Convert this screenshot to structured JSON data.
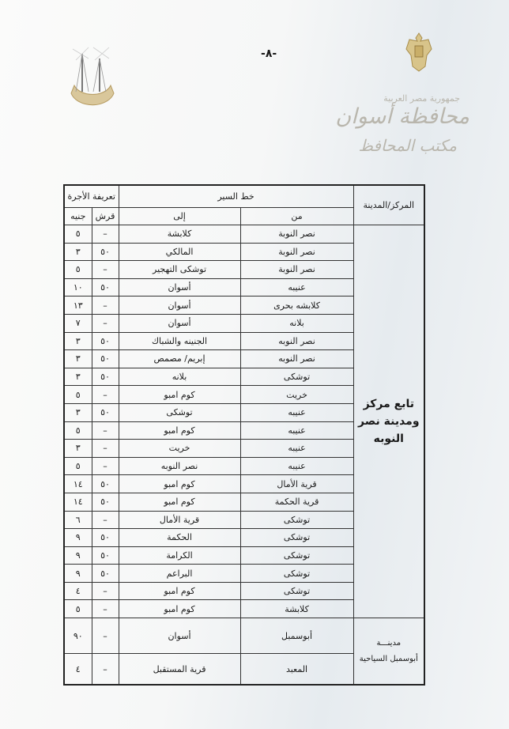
{
  "page_number": "-٨-",
  "letterhead": {
    "country": "جمهورية مصر العربية",
    "governorate": "محافظة أسوان",
    "office": "مكتب المحافظ",
    "emblem_icon": "egypt-eagle-emblem",
    "logo_icon": "aswan-governorate-logo"
  },
  "table": {
    "headers": {
      "district": "المركز/المدينة",
      "route": "خط السير",
      "from": "من",
      "to": "إلى",
      "fare": "تعريفة الأجرة",
      "piasters": "قرش",
      "pounds": "جنيه"
    },
    "groups": [
      {
        "district": "تابع مركز ومدينة نصر النوبه",
        "rows": [
          {
            "from": "نصر النوبة",
            "to": "كلابشة",
            "piasters": "–",
            "pounds": "٥"
          },
          {
            "from": "نصر النوبة",
            "to": "المالكي",
            "piasters": "٥٠",
            "pounds": "٣"
          },
          {
            "from": "نصر النوبة",
            "to": "توشكى التهجير",
            "piasters": "–",
            "pounds": "٥"
          },
          {
            "from": "عنيبه",
            "to": "أسوان",
            "piasters": "٥٠",
            "pounds": "١٠"
          },
          {
            "from": "كلابشه بحرى",
            "to": "أسوان",
            "piasters": "–",
            "pounds": "١٣"
          },
          {
            "from": "بلانه",
            "to": "أسوان",
            "piasters": "–",
            "pounds": "٧"
          },
          {
            "from": "نصر النوبه",
            "to": "الجنينه والشباك",
            "piasters": "٥٠",
            "pounds": "٣"
          },
          {
            "from": "نصر النوبه",
            "to": "إبريم/ مصمص",
            "piasters": "٥٠",
            "pounds": "٣"
          },
          {
            "from": "توشكى",
            "to": "بلانه",
            "piasters": "٥٠",
            "pounds": "٣"
          },
          {
            "from": "خريت",
            "to": "كوم امبو",
            "piasters": "–",
            "pounds": "٥"
          },
          {
            "from": "عنيبه",
            "to": "توشكى",
            "piasters": "٥٠",
            "pounds": "٣"
          },
          {
            "from": "عنيبه",
            "to": "كوم امبو",
            "piasters": "–",
            "pounds": "٥"
          },
          {
            "from": "عنيبه",
            "to": "خريت",
            "piasters": "–",
            "pounds": "٣"
          },
          {
            "from": "عنيبه",
            "to": "نصر النوبه",
            "piasters": "–",
            "pounds": "٥"
          },
          {
            "from": "قرية الأمال",
            "to": "كوم امبو",
            "piasters": "٥٠",
            "pounds": "١٤"
          },
          {
            "from": "قرية الحكمة",
            "to": "كوم امبو",
            "piasters": "٥٠",
            "pounds": "١٤"
          },
          {
            "from": "توشكى",
            "to": "قرية الأمال",
            "piasters": "–",
            "pounds": "٦"
          },
          {
            "from": "توشكى",
            "to": "الحكمة",
            "piasters": "٥٠",
            "pounds": "٩"
          },
          {
            "from": "توشكى",
            "to": "الكرامة",
            "piasters": "٥٠",
            "pounds": "٩"
          },
          {
            "from": "توشكى",
            "to": "البراعم",
            "piasters": "٥٠",
            "pounds": "٩"
          },
          {
            "from": "توشكى",
            "to": "كوم امبو",
            "piasters": "–",
            "pounds": "٤"
          },
          {
            "from": "كلابشة",
            "to": "كوم امبو",
            "piasters": "–",
            "pounds": "٥"
          }
        ]
      },
      {
        "district_line1": "مدينـــة",
        "district_line2": "أبوسمبل السياحية",
        "rows": [
          {
            "from": "أبوسمبل",
            "to": "أسوان",
            "piasters": "–",
            "pounds": "٩٠"
          },
          {
            "from": "المعبد",
            "to": "قرية المستقبل",
            "piasters": "–",
            "pounds": "٤"
          }
        ]
      }
    ]
  }
}
